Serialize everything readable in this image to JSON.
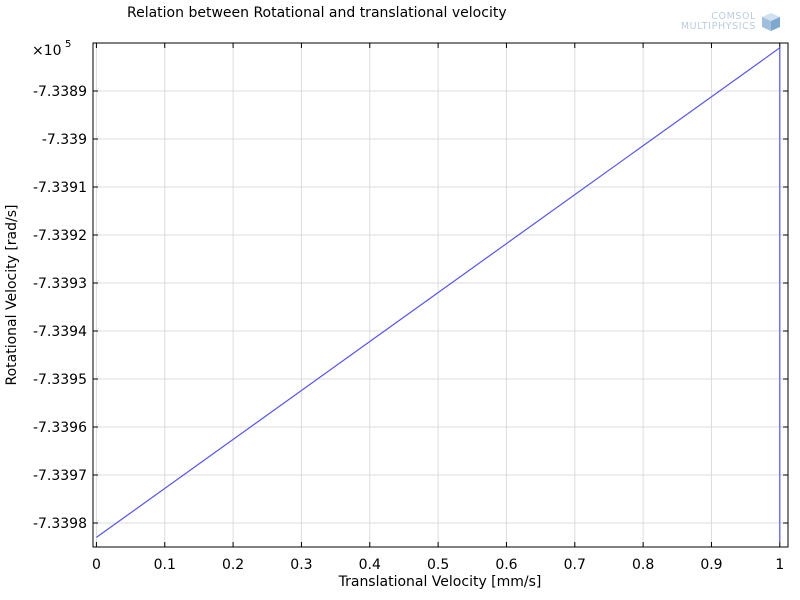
{
  "logo": {
    "line1": "COMSOL",
    "line2": "MULTIPHYSICS",
    "icon": "cube-icon"
  },
  "chart_data": {
    "type": "line",
    "title": "Relation between Rotational and translational velocity",
    "xlabel": "Translational Velocity [mm/s]",
    "ylabel": "Rotational Velocity [rad/s]",
    "y_multiplier": "×10",
    "y_multiplier_exp": "5",
    "xlim": [
      -0.005,
      1.012
    ],
    "ylim": [
      -7.33985,
      -7.3388
    ],
    "x_ticks": [
      0,
      0.1,
      0.2,
      0.3,
      0.4,
      0.5,
      0.6,
      0.7,
      0.8,
      0.9,
      1
    ],
    "x_tick_labels": [
      "0",
      "0.1",
      "0.2",
      "0.3",
      "0.4",
      "0.5",
      "0.6",
      "0.7",
      "0.8",
      "0.9",
      "1"
    ],
    "y_ticks": [
      -7.3389,
      -7.339,
      -7.3391,
      -7.3392,
      -7.3393,
      -7.3394,
      -7.3395,
      -7.3396,
      -7.3397,
      -7.3398
    ],
    "y_tick_labels": [
      "-7.3389",
      "-7.339",
      "-7.3391",
      "-7.3392",
      "-7.3393",
      "-7.3394",
      "-7.3395",
      "-7.3396",
      "-7.3397",
      "-7.3398"
    ],
    "grid": true,
    "series": [
      {
        "color": "#5555ee",
        "x": [
          0,
          1,
          1
        ],
        "y": [
          -7.33983,
          -7.33881,
          -7.33984
        ]
      }
    ]
  }
}
